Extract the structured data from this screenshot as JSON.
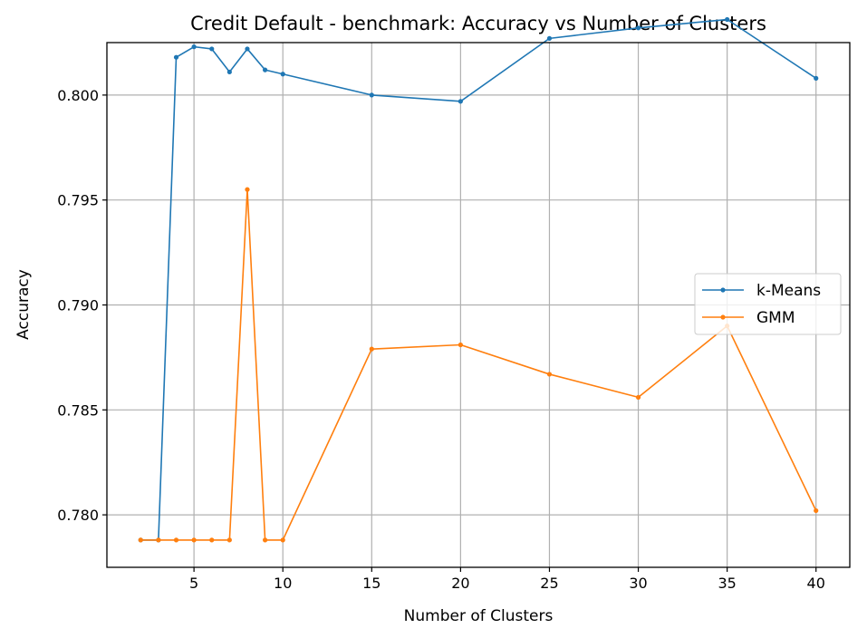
{
  "chart_data": {
    "type": "line",
    "title": "Credit Default - benchmark: Accuracy vs Number of Clusters",
    "xlabel": "Number of Clusters",
    "ylabel": "Accuracy",
    "x": [
      2,
      3,
      4,
      5,
      6,
      7,
      8,
      9,
      10,
      15,
      20,
      25,
      30,
      35,
      40
    ],
    "xlim": [
      0.1,
      41.9
    ],
    "ylim": [
      0.7775,
      0.8025
    ],
    "xticks": [
      5,
      10,
      15,
      20,
      25,
      30,
      35,
      40
    ],
    "yticks": [
      0.78,
      0.785,
      0.79,
      0.795,
      0.8
    ],
    "ytick_labels": [
      "0.780",
      "0.785",
      "0.790",
      "0.795",
      "0.800"
    ],
    "grid": true,
    "legend_position": "center-right",
    "series": [
      {
        "name": "k-Means",
        "color": "#1f77b4",
        "values": [
          0.7788,
          0.7788,
          0.8018,
          0.8023,
          0.8022,
          0.8011,
          0.8022,
          0.8012,
          0.801,
          0.8,
          0.7997,
          0.8027,
          0.8032,
          0.8036,
          0.8008
        ]
      },
      {
        "name": "GMM",
        "color": "#ff7f0e",
        "values": [
          0.7788,
          0.7788,
          0.7788,
          0.7788,
          0.7788,
          0.7788,
          0.7955,
          0.7788,
          0.7788,
          0.7879,
          0.7881,
          0.7867,
          0.7856,
          0.789,
          0.7802
        ]
      }
    ]
  }
}
